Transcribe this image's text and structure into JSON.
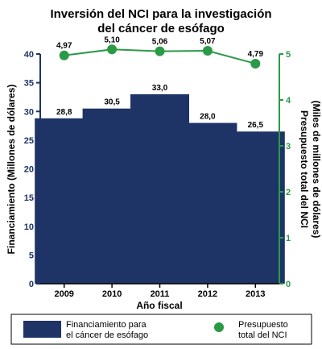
{
  "title": {
    "line1": "Inversión del NCI para la investigación",
    "line2": "del cáncer de esófago"
  },
  "colors": {
    "bar": "#1e3366",
    "line": "#2a9a46",
    "left_axis": "#1e3366",
    "right_axis": "#2a9a46"
  },
  "chart_data": {
    "type": "bar",
    "categories": [
      "2009",
      "2010",
      "2011",
      "2012",
      "2013"
    ],
    "xlabel": "Año fiscal",
    "series": [
      {
        "name": "Financiamiento para el cáncer de esófago",
        "type": "bar",
        "axis": "left",
        "values": [
          28.8,
          30.5,
          33.0,
          28.0,
          26.5
        ],
        "labels": [
          "28,8",
          "30,5",
          "33,0",
          "28,0",
          "26,5"
        ]
      },
      {
        "name": "Presupuesto total del NCI",
        "type": "line",
        "axis": "right",
        "values": [
          4.97,
          5.1,
          5.06,
          5.07,
          4.79
        ],
        "labels": [
          "4,97",
          "5,10",
          "5,06",
          "5,07",
          "4,79"
        ]
      }
    ],
    "y_left": {
      "label": "Financiamiento (Millones de dólares)",
      "range": [
        0,
        40
      ],
      "ticks": [
        "0",
        "5",
        "10",
        "15",
        "20",
        "25",
        "30",
        "35",
        "40"
      ]
    },
    "y_right": {
      "label_line1": "Presupuesto total del NCI",
      "label_line2": "(Miles de millones de dólares)",
      "range": [
        0,
        5
      ],
      "ticks": [
        "0",
        "1",
        "2",
        "3",
        "4",
        "5"
      ]
    },
    "grid": false,
    "legend_position": "bottom"
  },
  "legend": {
    "bar_line1": "Financiamiento para",
    "bar_line2": "el cáncer de esófago",
    "line_line1": "Presupuesto",
    "line_line2": "total del NCI"
  }
}
